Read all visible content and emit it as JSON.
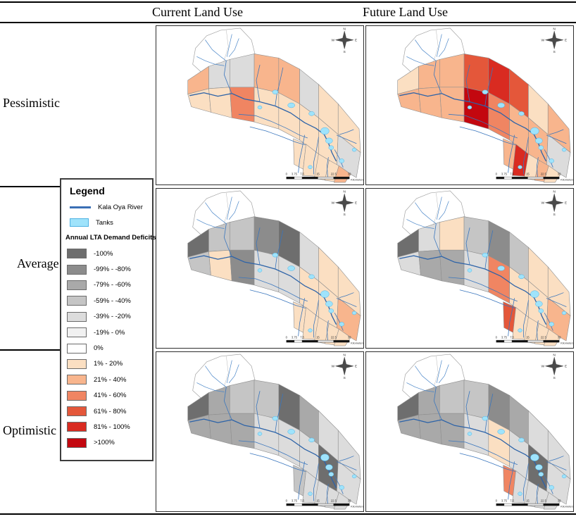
{
  "figure": {
    "column_headers": [
      "Current Land Use",
      "Future Land Use"
    ],
    "row_labels": [
      "Pessimistic",
      "Average",
      "Optimistic"
    ]
  },
  "legend": {
    "title": "Legend",
    "river_label": "Kala Oya River",
    "river_color": "#3a6fb5",
    "tanks_label": "Tanks",
    "tank_fill": "#9fe3fb",
    "tank_stroke": "#4fb2e3",
    "deficits_header": "Annual LTA Demand Deficits",
    "classes": [
      {
        "label": "-100%",
        "color": "#6e6e6e"
      },
      {
        "label": "-99% - -80%",
        "color": "#8c8c8c"
      },
      {
        "label": "-79% - -60%",
        "color": "#a9a9a9"
      },
      {
        "label": "-59% - -40%",
        "color": "#c5c5c5"
      },
      {
        "label": "-39% - -20%",
        "color": "#dcdcdc"
      },
      {
        "label": "-19% - 0%",
        "color": "#f1f1f1"
      },
      {
        "label": "0%",
        "color": "#ffffff"
      },
      {
        "label": "1% - 20%",
        "color": "#fbdfc2"
      },
      {
        "label": "21% - 40%",
        "color": "#f8b58d"
      },
      {
        "label": "41% - 60%",
        "color": "#f08562"
      },
      {
        "label": "61% - 80%",
        "color": "#e4573a"
      },
      {
        "label": "81% - 100%",
        "color": "#d92b21"
      },
      {
        "label": ">100%",
        "color": "#c3070f"
      }
    ]
  },
  "map_common": {
    "compass": {
      "n": "N",
      "s": "S",
      "e": "E",
      "w": "W"
    },
    "scalebar": {
      "ticks": [
        "0",
        "3.75",
        "7.5",
        "15",
        "22.5",
        "30"
      ],
      "tick_values": [
        0,
        3.75,
        7.5,
        15,
        22.5,
        30
      ],
      "unit": "Kilometers"
    }
  },
  "maps": [
    {
      "id": "pessimistic-current",
      "scenario": "Pessimistic",
      "land_use": "Current Land Use",
      "cells": [
        8,
        4,
        4,
        8,
        8,
        4,
        7,
        7,
        7,
        7,
        9,
        7,
        7,
        7,
        7,
        4,
        7,
        7,
        7,
        7,
        8
      ]
    },
    {
      "id": "pessimistic-future",
      "scenario": "Pessimistic",
      "land_use": "Future Land Use",
      "cells": [
        7,
        8,
        8,
        10,
        11,
        10,
        7,
        8,
        8,
        8,
        8,
        12,
        9,
        8,
        8,
        4,
        8,
        11,
        7,
        8,
        7
      ]
    },
    {
      "id": "average-current",
      "scenario": "Average",
      "land_use": "Current Land Use",
      "cells": [
        0,
        3,
        3,
        1,
        0,
        4,
        7,
        7,
        3,
        7,
        1,
        4,
        4,
        7,
        7,
        8,
        7,
        7,
        7,
        7,
        7
      ]
    },
    {
      "id": "average-future",
      "scenario": "Average",
      "land_use": "Future Land Use",
      "cells": [
        0,
        4,
        7,
        3,
        1,
        3,
        7,
        7,
        4,
        2,
        2,
        4,
        9,
        7,
        7,
        8,
        10,
        7,
        7,
        7,
        7
      ]
    },
    {
      "id": "optimistic-current",
      "scenario": "Optimistic",
      "land_use": "Current Land Use",
      "cells": [
        0,
        2,
        3,
        3,
        0,
        2,
        4,
        4,
        2,
        2,
        2,
        4,
        4,
        4,
        0,
        4,
        3,
        4,
        4,
        4,
        4
      ]
    },
    {
      "id": "optimistic-future",
      "scenario": "Optimistic",
      "land_use": "Future Land Use",
      "cells": [
        0,
        2,
        3,
        3,
        1,
        2,
        4,
        4,
        2,
        2,
        2,
        4,
        7,
        4,
        0,
        4,
        9,
        4,
        4,
        4,
        4
      ]
    }
  ]
}
